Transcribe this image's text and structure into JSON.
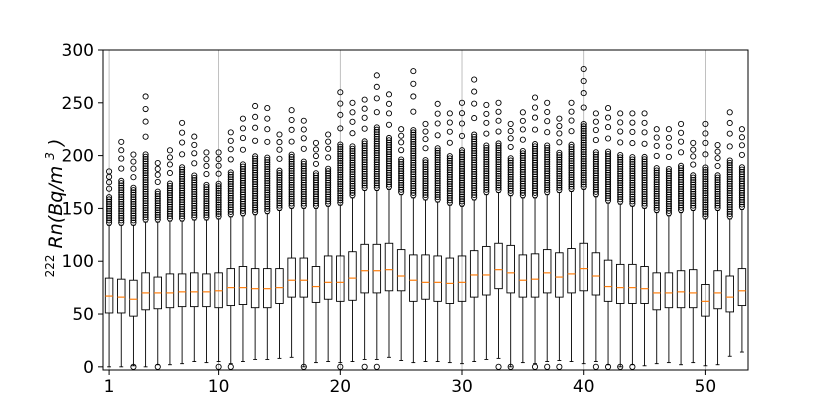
{
  "chart_data": {
    "type": "boxplot",
    "title": "",
    "xlabel": "",
    "ylabel": {
      "sup": "222",
      "italic_pre": "Rn(Bq/m",
      "italic_sup": "3",
      "italic_post": ")"
    },
    "xlim": [
      0.5,
      53.5
    ],
    "ylim": [
      -3,
      300
    ],
    "x_ticks": [
      1,
      10,
      20,
      30,
      40,
      50
    ],
    "y_ticks": [
      0,
      50,
      100,
      150,
      200,
      250,
      300
    ],
    "grid": "vertical",
    "colors": {
      "box": "#000000",
      "median": "#ff7f0e",
      "grid": "#b0b0b0",
      "flier": "#000000"
    },
    "x": [
      1,
      2,
      3,
      4,
      5,
      6,
      7,
      8,
      9,
      10,
      11,
      12,
      13,
      14,
      15,
      16,
      17,
      18,
      19,
      20,
      21,
      22,
      23,
      24,
      25,
      26,
      27,
      28,
      29,
      30,
      31,
      32,
      33,
      34,
      35,
      36,
      37,
      38,
      39,
      40,
      41,
      42,
      43,
      44,
      45,
      46,
      47,
      48,
      49,
      50,
      51,
      52,
      53
    ],
    "q1": [
      51,
      51,
      48,
      54,
      55,
      56,
      57,
      57,
      57,
      56,
      58,
      59,
      56,
      56,
      60,
      66,
      66,
      61,
      64,
      62,
      63,
      70,
      70,
      72,
      72,
      62,
      64,
      62,
      60,
      62,
      66,
      68,
      74,
      70,
      66,
      66,
      70,
      66,
      70,
      72,
      68,
      62,
      60,
      60,
      60,
      54,
      56,
      56,
      56,
      48,
      55,
      52,
      58
    ],
    "median": [
      67,
      66,
      64,
      70,
      70,
      70,
      71,
      71,
      71,
      72,
      75,
      75,
      74,
      74,
      75,
      82,
      82,
      76,
      80,
      80,
      84,
      91,
      91,
      92,
      86,
      82,
      80,
      80,
      79,
      80,
      87,
      87,
      92,
      89,
      82,
      83,
      89,
      85,
      88,
      93,
      86,
      76,
      75,
      75,
      74,
      70,
      70,
      71,
      70,
      62,
      70,
      66,
      72
    ],
    "q3": [
      84,
      83,
      82,
      89,
      85,
      88,
      88,
      89,
      88,
      89,
      93,
      95,
      93,
      93,
      93,
      103,
      103,
      95,
      105,
      105,
      109,
      116,
      116,
      117,
      111,
      106,
      106,
      105,
      103,
      105,
      110,
      114,
      117,
      115,
      106,
      107,
      111,
      108,
      112,
      117,
      108,
      101,
      97,
      97,
      95,
      89,
      89,
      91,
      92,
      78,
      91,
      86,
      93
    ],
    "whisker_low": [
      0,
      0,
      1,
      0,
      2,
      2,
      3,
      5,
      4,
      5,
      3,
      5,
      7,
      7,
      8,
      9,
      0,
      4,
      5,
      4,
      5,
      7,
      7,
      9,
      6,
      4,
      5,
      5,
      4,
      3,
      5,
      7,
      8,
      0,
      4,
      3,
      5,
      6,
      5,
      3,
      5,
      2,
      0,
      2,
      1,
      3,
      4,
      2,
      4,
      1,
      2,
      10,
      14
    ],
    "whisker_high": [
      134,
      134,
      134,
      137,
      137,
      138,
      138,
      139,
      139,
      140,
      142,
      143,
      144,
      145,
      148,
      150,
      150,
      150,
      152,
      153,
      160,
      167,
      167,
      168,
      163,
      160,
      158,
      156,
      153,
      152,
      158,
      163,
      165,
      162,
      160,
      160,
      163,
      165,
      166,
      168,
      161,
      155,
      154,
      152,
      150,
      146,
      143,
      146,
      148,
      140,
      148,
      140,
      149
    ],
    "flier_top": [
      185,
      213,
      201,
      256,
      193,
      205,
      231,
      218,
      203,
      203,
      222,
      235,
      247,
      245,
      220,
      243,
      233,
      212,
      220,
      260,
      250,
      253,
      276,
      258,
      225,
      280,
      230,
      249,
      240,
      250,
      272,
      248,
      250,
      230,
      241,
      255,
      250,
      235,
      250,
      282,
      240,
      245,
      240,
      240,
      240,
      225,
      225,
      230,
      212,
      230,
      210,
      241,
      225
    ],
    "flier_low": [
      [],
      [],
      [
        0
      ],
      [],
      [
        0
      ],
      [],
      [],
      [],
      [],
      [
        0
      ],
      [
        0
      ],
      [],
      [],
      [],
      [],
      [],
      [
        0
      ],
      [],
      [],
      [
        0
      ],
      [],
      [
        0
      ],
      [
        0
      ],
      [],
      [],
      [],
      [],
      [],
      [],
      [],
      [],
      [],
      [
        0
      ],
      [
        0
      ],
      [],
      [
        0
      ],
      [
        0
      ],
      [
        0
      ],
      [],
      [],
      [
        0
      ],
      [
        0
      ],
      [
        0
      ],
      [
        0
      ],
      [],
      [],
      [],
      [],
      [],
      [],
      [],
      [],
      []
    ]
  }
}
